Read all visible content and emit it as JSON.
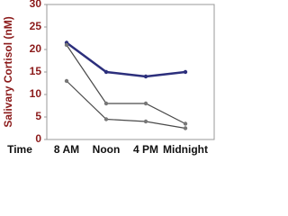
{
  "chart_data": {
    "type": "line",
    "y_label": "Salivary Cortisol (nM)",
    "x_label": "Time",
    "categories": [
      "8 AM",
      "Noon",
      "4 PM",
      "Midnight"
    ],
    "series": [
      {
        "color": "#2c2f7c",
        "values": [
          21.5,
          15,
          14,
          15
        ]
      },
      {
        "color": "#4a4a4a",
        "values": [
          21,
          8,
          8,
          3.5
        ]
      },
      {
        "color": "#4a4a4a",
        "values": [
          13,
          4.5,
          4,
          2.5
        ]
      }
    ],
    "ylim": [
      0,
      30
    ],
    "yticks": [
      0,
      5,
      10,
      15,
      20,
      25,
      30
    ]
  }
}
